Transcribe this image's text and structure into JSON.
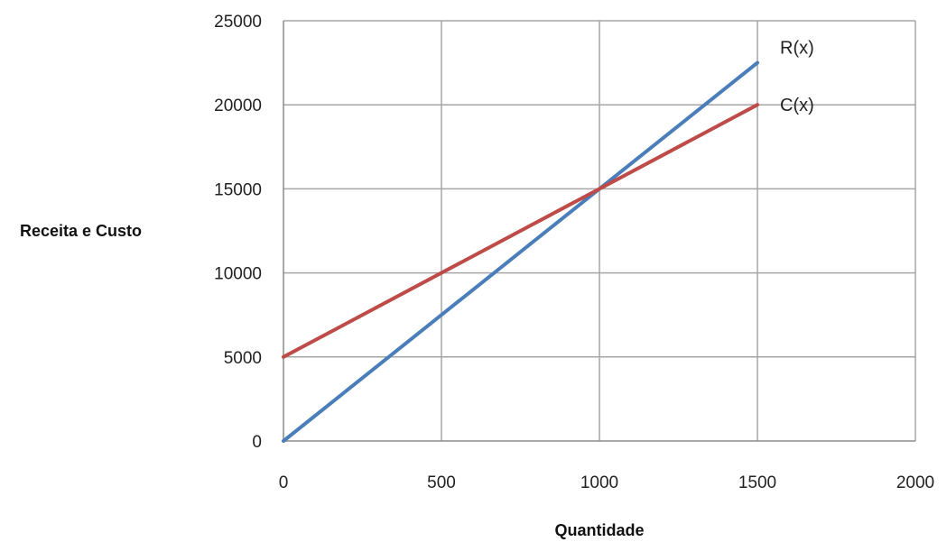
{
  "chart_data": {
    "type": "line",
    "title": "",
    "xlabel": "Quantidade",
    "ylabel": "Receita e Custo",
    "xlim": [
      0,
      2000
    ],
    "ylim": [
      0,
      25000
    ],
    "x_ticks": [
      0,
      500,
      1000,
      1500,
      2000
    ],
    "y_ticks": [
      0,
      5000,
      10000,
      15000,
      20000,
      25000
    ],
    "grid": true,
    "legend": "none",
    "series": [
      {
        "name": "R(x)",
        "color": "#4a7ebb",
        "x": [
          0,
          1500
        ],
        "values": [
          0,
          22500
        ]
      },
      {
        "name": "C(x)",
        "color": "#be4b48",
        "x": [
          0,
          1500
        ],
        "values": [
          5000,
          20000
        ]
      }
    ]
  }
}
